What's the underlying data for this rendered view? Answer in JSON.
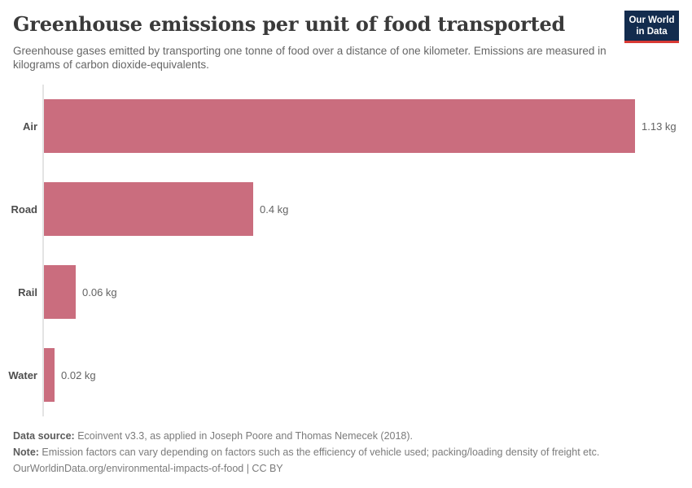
{
  "header": {
    "title": "Greenhouse emissions per unit of food transported",
    "subtitle": "Greenhouse gases emitted by transporting one tonne of food over a distance of one kilometer. Emissions are measured in kilograms of carbon dioxide-equivalents.",
    "logo": {
      "line1": "Our World",
      "line2": "in Data"
    }
  },
  "chart_data": {
    "type": "bar",
    "orientation": "horizontal",
    "title": "Greenhouse emissions per unit of food transported",
    "categories": [
      "Air",
      "Road",
      "Rail",
      "Water"
    ],
    "values": [
      1.13,
      0.4,
      0.06,
      0.02
    ],
    "value_labels": [
      "1.13 kg",
      "0.4 kg",
      "0.06 kg",
      "0.02 kg"
    ],
    "unit": "kg",
    "xlim": [
      0,
      1.13
    ],
    "grid": false,
    "legend": "none",
    "bar_color": "#ca6d7e"
  },
  "footer": {
    "data_source_label": "Data source:",
    "data_source_text": " Ecoinvent v3.3, as applied in Joseph Poore and Thomas Nemecek (2018).",
    "note_label": "Note:",
    "note_text": " Emission factors can vary depending on factors such as the efficiency of vehicle used; packing/loading density of freight etc.",
    "citation": "OurWorldinData.org/environmental-impacts-of-food | CC BY"
  },
  "colors": {
    "bar": "#ca6d7e",
    "logo_bg": "#132c4e",
    "logo_accent": "#d93a34",
    "axis": "#e4e4e4"
  }
}
